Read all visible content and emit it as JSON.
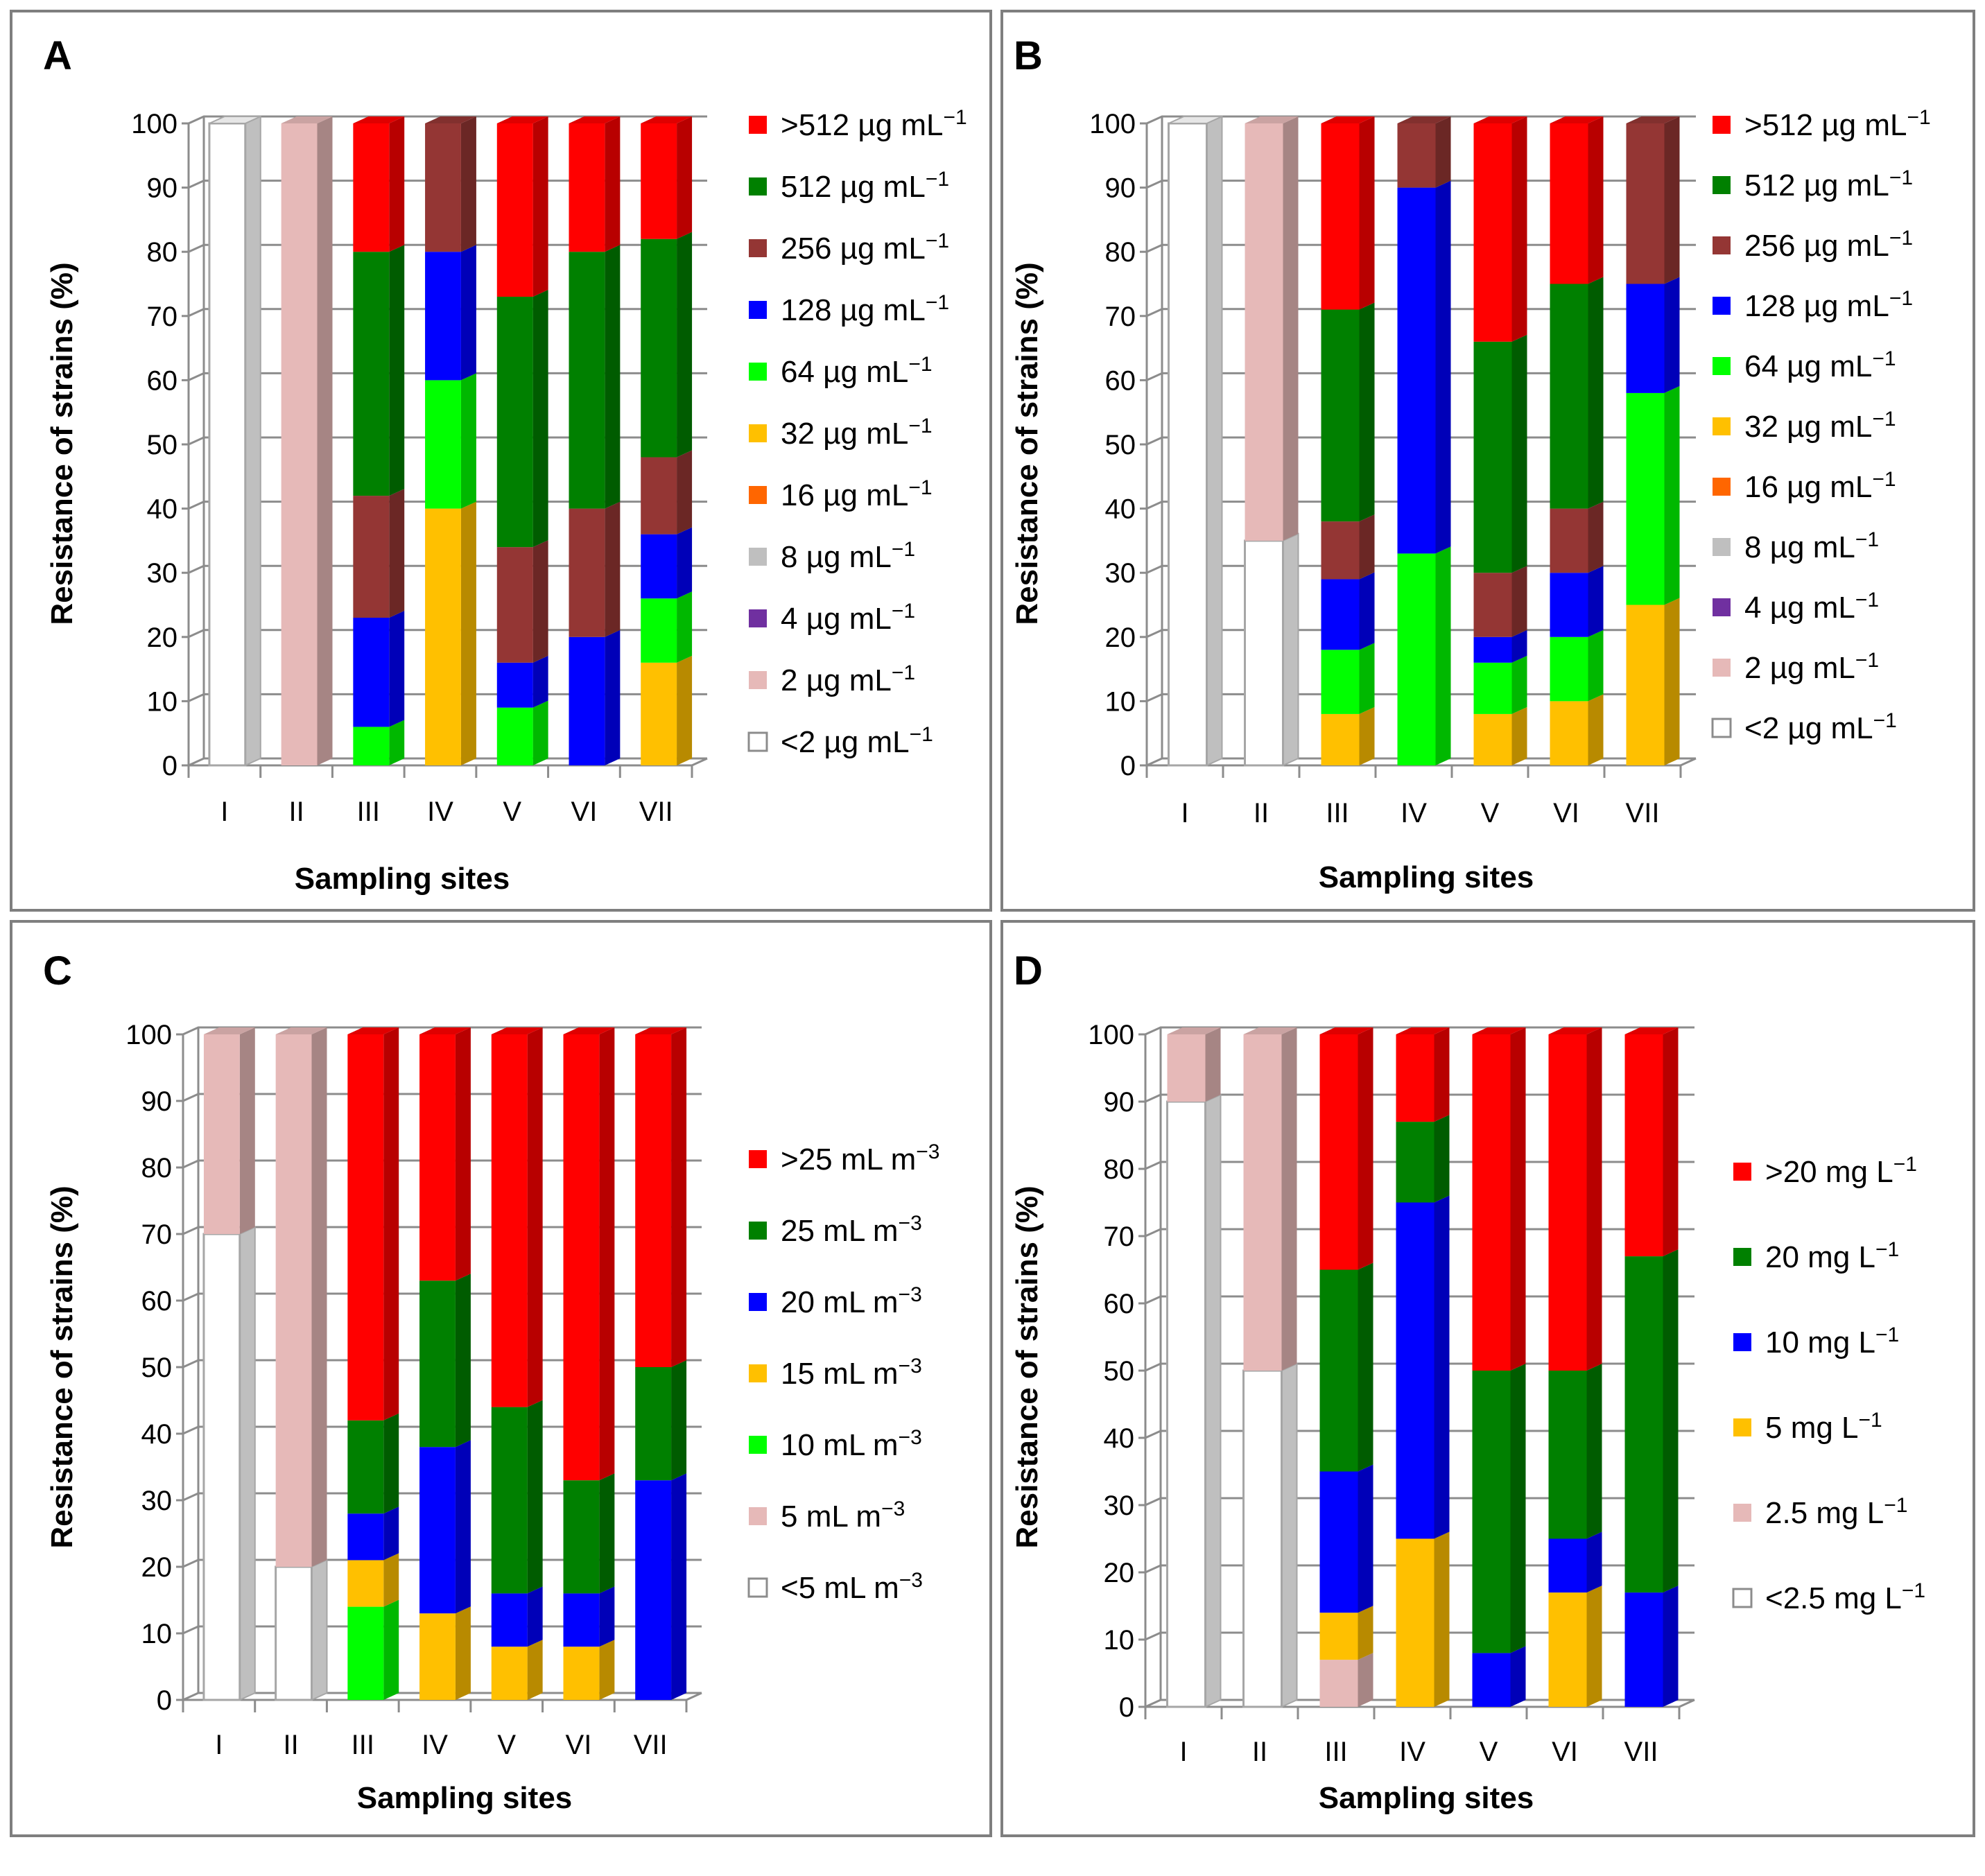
{
  "chart_data": [
    {
      "panel": "A",
      "type": "bar",
      "stacked": true,
      "categories": [
        "I",
        "II",
        "III",
        "IV",
        "V",
        "VI",
        "VII"
      ],
      "xlabel": "Sampling sites",
      "ylabel": "Resistance of strains (%)",
      "ylim": [
        0,
        100
      ],
      "yticks": [
        "0",
        "10",
        "20",
        "30",
        "40",
        "50",
        "60",
        "70",
        "80",
        "90",
        "100"
      ],
      "legend": [
        {
          "label": ">512 µg mL",
          "sup": "−1",
          "color": "#ff0000"
        },
        {
          "label": "512 µg mL",
          "sup": "−1",
          "color": "#008000"
        },
        {
          "label": "256 µg mL",
          "sup": "−1",
          "color": "#943634"
        },
        {
          "label": "128 µg mL",
          "sup": "−1",
          "color": "#0000ff"
        },
        {
          "label": "64  µg mL",
          "sup": "−1",
          "color": "#00ff00"
        },
        {
          "label": "32  µg mL",
          "sup": "−1",
          "color": "#ffc000"
        },
        {
          "label": "16  µg mL",
          "sup": "−1",
          "color": "#ff6600"
        },
        {
          "label": "8 µg mL",
          "sup": "−1",
          "color": "#bfbfbf"
        },
        {
          "label": "4 µg mL",
          "sup": "−1",
          "color": "#7030a0"
        },
        {
          "label": "2 µg mL",
          "sup": "−1",
          "color": "#e6b9b8"
        },
        {
          "label": "<2 µg mL",
          "sup": "−1",
          "color": "#ffffff"
        }
      ],
      "series": [
        {
          "name": "<2 µg mL−1",
          "color": "#ffffff",
          "values": [
            100,
            0,
            0,
            0,
            0,
            0,
            0
          ]
        },
        {
          "name": "2 µg mL−1",
          "color": "#e6b9b8",
          "values": [
            0,
            100,
            0,
            0,
            0,
            0,
            0
          ]
        },
        {
          "name": "32 µg mL−1",
          "color": "#ffc000",
          "values": [
            0,
            0,
            0,
            40,
            0,
            0,
            16
          ]
        },
        {
          "name": "64 µg mL−1",
          "color": "#00ff00",
          "values": [
            0,
            0,
            6,
            20,
            9,
            0,
            10
          ]
        },
        {
          "name": "128 µg mL−1",
          "color": "#0000ff",
          "values": [
            0,
            0,
            17,
            20,
            7,
            20,
            10
          ]
        },
        {
          "name": "256 µg mL−1",
          "color": "#943634",
          "values": [
            0,
            0,
            19,
            20,
            18,
            20,
            12
          ]
        },
        {
          "name": "512 µg mL−1",
          "color": "#008000",
          "values": [
            0,
            0,
            38,
            0,
            39,
            40,
            34
          ]
        },
        {
          "name": ">512 µg mL−1",
          "color": "#ff0000",
          "values": [
            0,
            0,
            20,
            0,
            27,
            20,
            18
          ]
        }
      ]
    },
    {
      "panel": "B",
      "type": "bar",
      "stacked": true,
      "categories": [
        "I",
        "II",
        "III",
        "IV",
        "V",
        "VI",
        "VII"
      ],
      "xlabel": "Sampling sites",
      "ylabel": "Resistance of strains (%)",
      "ylim": [
        0,
        100
      ],
      "yticks": [
        "0",
        "10",
        "20",
        "30",
        "40",
        "50",
        "60",
        "70",
        "80",
        "90",
        "100"
      ],
      "legend": [
        {
          "label": ">512 µg mL",
          "sup": "−1",
          "color": "#ff0000"
        },
        {
          "label": "512 µg mL",
          "sup": "−1",
          "color": "#008000"
        },
        {
          "label": "256 µg mL",
          "sup": "−1",
          "color": "#943634"
        },
        {
          "label": "128 µg mL",
          "sup": "−1",
          "color": "#0000ff"
        },
        {
          "label": "64  µg mL",
          "sup": "−1",
          "color": "#00ff00"
        },
        {
          "label": "32  µg mL",
          "sup": "−1",
          "color": "#ffc000"
        },
        {
          "label": "16  µg mL",
          "sup": "−1",
          "color": "#ff6600"
        },
        {
          "label": "8 µg mL",
          "sup": "−1",
          "color": "#bfbfbf"
        },
        {
          "label": "4 µg mL",
          "sup": "−1",
          "color": "#7030a0"
        },
        {
          "label": "2 µg mL",
          "sup": "−1",
          "color": "#e6b9b8"
        },
        {
          "label": "<2 µg mL",
          "sup": "−1",
          "color": "#ffffff"
        }
      ],
      "series": [
        {
          "name": "<2 µg mL−1",
          "color": "#ffffff",
          "values": [
            100,
            35,
            0,
            0,
            0,
            0,
            0
          ]
        },
        {
          "name": "2 µg mL−1",
          "color": "#e6b9b8",
          "values": [
            0,
            65,
            0,
            0,
            0,
            0,
            0
          ]
        },
        {
          "name": "32 µg mL−1",
          "color": "#ffc000",
          "values": [
            0,
            0,
            8,
            0,
            8,
            10,
            25
          ]
        },
        {
          "name": "64 µg mL−1",
          "color": "#00ff00",
          "values": [
            0,
            0,
            10,
            33,
            8,
            10,
            33
          ]
        },
        {
          "name": "128 µg mL−1",
          "color": "#0000ff",
          "values": [
            0,
            0,
            11,
            57,
            4,
            10,
            17
          ]
        },
        {
          "name": "256 µg mL−1",
          "color": "#943634",
          "values": [
            0,
            0,
            9,
            10,
            10,
            10,
            25
          ]
        },
        {
          "name": "512 µg mL−1",
          "color": "#008000",
          "values": [
            0,
            0,
            33,
            0,
            36,
            35,
            0
          ]
        },
        {
          "name": ">512 µg mL−1",
          "color": "#ff0000",
          "values": [
            0,
            0,
            29,
            0,
            34,
            25,
            0
          ]
        }
      ]
    },
    {
      "panel": "C",
      "type": "bar",
      "stacked": true,
      "categories": [
        "I",
        "II",
        "III",
        "IV",
        "V",
        "VI",
        "VII"
      ],
      "xlabel": "Sampling sites",
      "ylabel": "Resistance of strains (%)",
      "ylim": [
        0,
        100
      ],
      "yticks": [
        "0",
        "10",
        "20",
        "30",
        "40",
        "50",
        "60",
        "70",
        "80",
        "90",
        "100"
      ],
      "legend": [
        {
          "label": ">25 mL m",
          "sup": "−3",
          "color": "#ff0000"
        },
        {
          "label": "25 mL m",
          "sup": "−3",
          "color": "#008000"
        },
        {
          "label": "20 mL m",
          "sup": "−3",
          "color": "#0000ff"
        },
        {
          "label": "15 mL m",
          "sup": "−3",
          "color": "#ffc000"
        },
        {
          "label": "10 mL m",
          "sup": "−3",
          "color": "#00ff00"
        },
        {
          "label": "5 mL m",
          "sup": "−3",
          "color": "#e6b9b8"
        },
        {
          "label": "<5 mL m",
          "sup": "−3",
          "color": "#ffffff"
        }
      ],
      "series": [
        {
          "name": "<5 mL m−3",
          "color": "#ffffff",
          "values": [
            70,
            20,
            0,
            0,
            0,
            0,
            0
          ]
        },
        {
          "name": "5 mL m−3",
          "color": "#e6b9b8",
          "values": [
            30,
            80,
            0,
            0,
            0,
            0,
            0
          ]
        },
        {
          "name": "10 mL m−3",
          "color": "#00ff00",
          "values": [
            0,
            0,
            14,
            0,
            0,
            0,
            0
          ]
        },
        {
          "name": "15 mL m−3",
          "color": "#ffc000",
          "values": [
            0,
            0,
            7,
            13,
            8,
            8,
            0
          ]
        },
        {
          "name": "20 mL m−3",
          "color": "#0000ff",
          "values": [
            0,
            0,
            7,
            25,
            8,
            8,
            33
          ]
        },
        {
          "name": "25 mL m−3",
          "color": "#008000",
          "values": [
            0,
            0,
            14,
            25,
            28,
            17,
            17
          ]
        },
        {
          "name": ">25 mL m−3",
          "color": "#ff0000",
          "values": [
            0,
            0,
            58,
            37,
            56,
            67,
            50
          ]
        }
      ]
    },
    {
      "panel": "D",
      "type": "bar",
      "stacked": true,
      "categories": [
        "I",
        "II",
        "III",
        "IV",
        "V",
        "VI",
        "VII"
      ],
      "xlabel": "Sampling sites",
      "ylabel": "Resistance of strains (%)",
      "ylim": [
        0,
        100
      ],
      "yticks": [
        "0",
        "10",
        "20",
        "30",
        "40",
        "50",
        "60",
        "70",
        "80",
        "90",
        "100"
      ],
      "legend": [
        {
          "label": ">20 mg L",
          "sup": "−1",
          "color": "#ff0000"
        },
        {
          "label": "20 mg L",
          "sup": "−1",
          "color": "#008000"
        },
        {
          "label": "10 mg L",
          "sup": "−1",
          "color": "#0000ff"
        },
        {
          "label": "5 mg L",
          "sup": "−1",
          "color": "#ffc000"
        },
        {
          "label": "2.5 mg L",
          "sup": "−1",
          "color": "#e6b9b8"
        },
        {
          "label": "<2.5 mg L",
          "sup": "−1",
          "color": "#ffffff"
        }
      ],
      "series": [
        {
          "name": "<2.5 mg L−1",
          "color": "#ffffff",
          "values": [
            90,
            50,
            0,
            0,
            0,
            0,
            0
          ]
        },
        {
          "name": "2.5 mg L−1",
          "color": "#e6b9b8",
          "values": [
            10,
            50,
            7,
            0,
            0,
            0,
            0
          ]
        },
        {
          "name": "5 mg L−1",
          "color": "#ffc000",
          "values": [
            0,
            0,
            7,
            25,
            0,
            17,
            0
          ]
        },
        {
          "name": "10 mg L−1",
          "color": "#0000ff",
          "values": [
            0,
            0,
            21,
            50,
            8,
            8,
            17
          ]
        },
        {
          "name": "20 mg L−1",
          "color": "#008000",
          "values": [
            0,
            0,
            30,
            12,
            42,
            25,
            50
          ]
        },
        {
          "name": ">20 mg L−1",
          "color": "#ff0000",
          "values": [
            0,
            0,
            35,
            13,
            50,
            50,
            33
          ]
        }
      ]
    }
  ]
}
